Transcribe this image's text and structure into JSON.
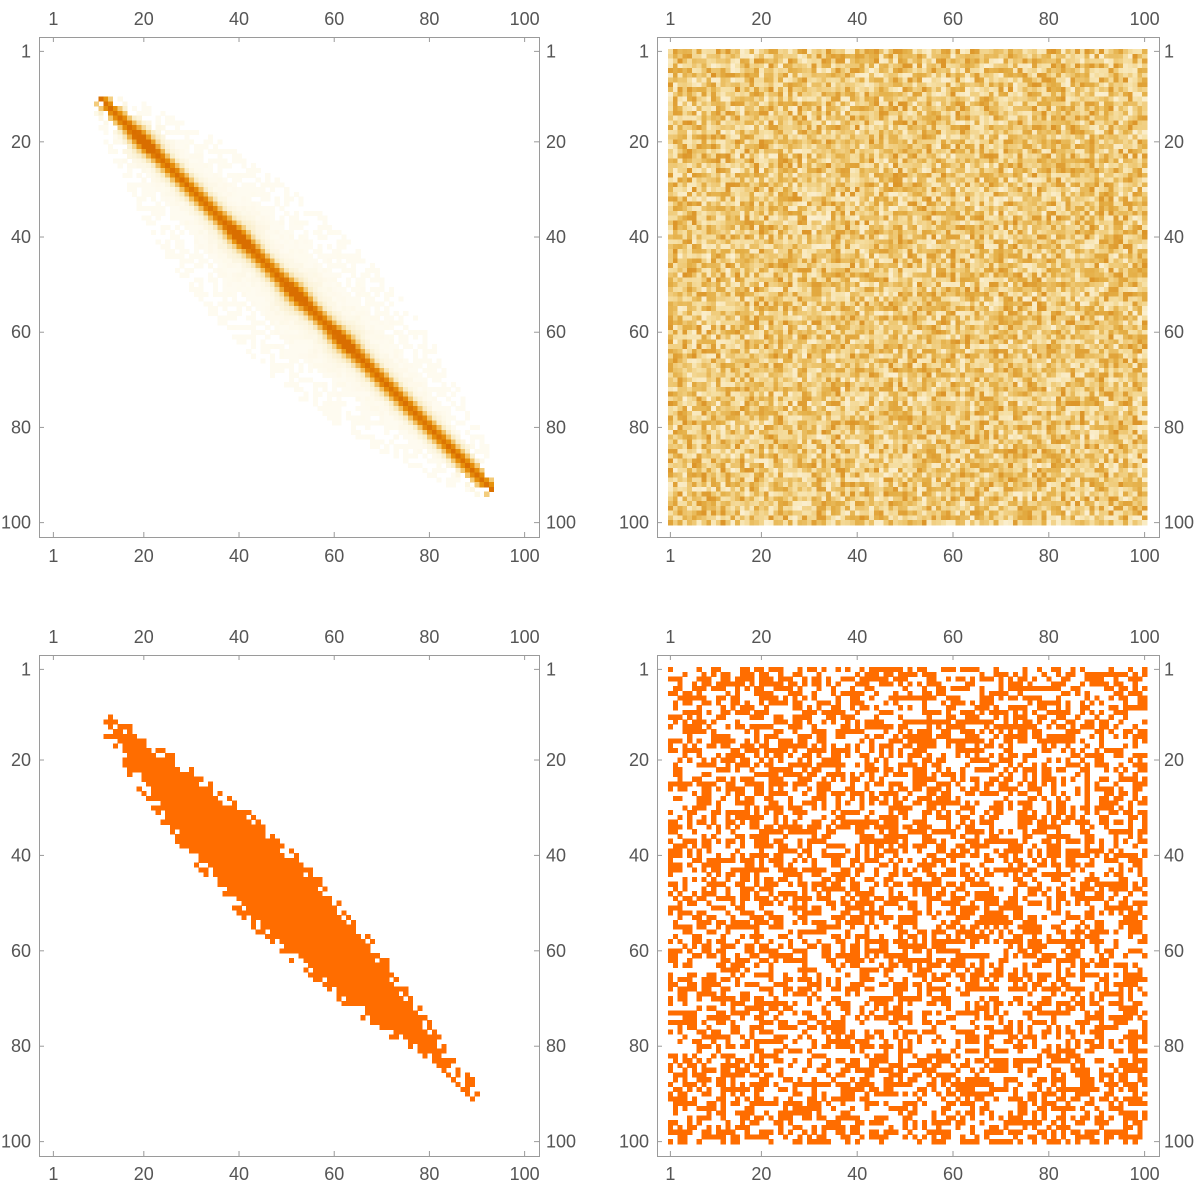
{
  "figure": {
    "layout": "2x2 grid of matrix plots",
    "background": "#ffffff",
    "frame_color": "#9a9a9a",
    "tick_label_color": "#555555"
  },
  "chart_data": [
    {
      "type": "heatmap",
      "panel": "top-left",
      "matrix_size": [
        100,
        100
      ],
      "row_range": [
        1,
        100
      ],
      "col_range": [
        1,
        100
      ],
      "y_axis_direction": "downward",
      "ticks": [
        1,
        20,
        40,
        60,
        80,
        100
      ],
      "tick_labels": [
        "1",
        "20",
        "40",
        "60",
        "80",
        "100"
      ],
      "tick_label_sides": [
        "top",
        "bottom",
        "left",
        "right"
      ],
      "colormap": [
        "#fffdf5",
        "#f9edc8",
        "#f2c66e",
        "#e8930c",
        "#d96e00"
      ],
      "pattern": "density concentrated along a diagonal band from (row 12, col 12) to (row 92, col 92), widest spread near row 50",
      "band": {
        "start": [
          12,
          12
        ],
        "end": [
          92,
          92
        ],
        "core_width": 3,
        "spread_max": 14
      },
      "peaks": [
        [
          20,
          20
        ],
        [
          40,
          40
        ],
        [
          52,
          52
        ],
        [
          62,
          62
        ]
      ]
    },
    {
      "type": "heatmap",
      "panel": "top-right",
      "matrix_size": [
        100,
        100
      ],
      "row_range": [
        1,
        100
      ],
      "col_range": [
        1,
        100
      ],
      "y_axis_direction": "downward",
      "ticks": [
        1,
        20,
        40,
        60,
        80,
        100
      ],
      "tick_labels": [
        "1",
        "20",
        "40",
        "60",
        "80",
        "100"
      ],
      "tick_label_sides": [
        "top",
        "bottom",
        "left",
        "right"
      ],
      "colormap": [
        "#fdf6e3",
        "#f6e1a8",
        "#efca77",
        "#e4ae45",
        "#d98a1c"
      ],
      "pattern": "uniform random noise over all cells"
    },
    {
      "type": "heatmap",
      "panel": "bottom-left",
      "matrix_size": [
        100,
        100
      ],
      "row_range": [
        1,
        100
      ],
      "col_range": [
        1,
        100
      ],
      "y_axis_direction": "downward",
      "ticks": [
        1,
        20,
        40,
        60,
        80,
        100
      ],
      "tick_labels": [
        "1",
        "20",
        "40",
        "60",
        "80",
        "100"
      ],
      "tick_label_sides": [
        "top",
        "bottom",
        "left",
        "right"
      ],
      "fill_color": "#ff6d00",
      "pattern": "binary mask of a diagonal ellipse-shaped band from (row 12, col 12) to (row 90, col 90)",
      "band": {
        "start": [
          12,
          12
        ],
        "end": [
          90,
          90
        ],
        "half_width_max": 7
      }
    },
    {
      "type": "heatmap",
      "panel": "bottom-right",
      "matrix_size": [
        100,
        100
      ],
      "row_range": [
        1,
        100
      ],
      "col_range": [
        1,
        100
      ],
      "y_axis_direction": "downward",
      "ticks": [
        1,
        20,
        40,
        60,
        80,
        100
      ],
      "tick_labels": [
        "1",
        "20",
        "40",
        "60",
        "80",
        "100"
      ],
      "tick_label_sides": [
        "top",
        "bottom",
        "left",
        "right"
      ],
      "fill_color": "#ff6d00",
      "pattern": "random binary mask, roughly half of cells filled"
    }
  ]
}
